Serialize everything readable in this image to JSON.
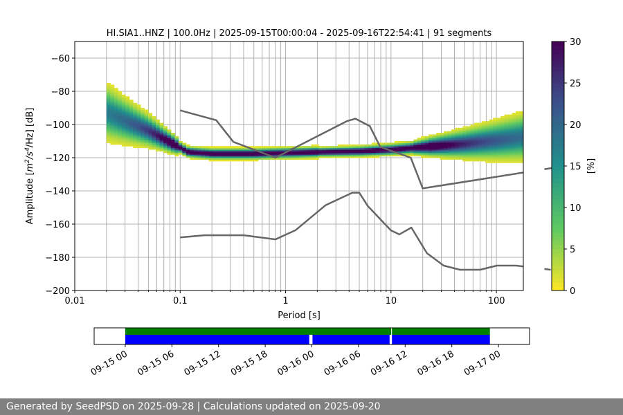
{
  "chart_data": [
    {
      "type": "heatmap",
      "title": "HI.SIA1..HNZ | 100.0Hz | 2025-09-15T00:00:04 - 2025-09-16T22:54:41 | 91 segments",
      "xlabel": "Period [s]",
      "ylabel": "Amplitude [$m^2/s^4/Hz$] [dB]",
      "ylabel_parts": {
        "pre": "Amplitude [",
        "m": "m",
        "exp1": "2",
        "mid": "/s",
        "exp2": "4",
        "post": "/Hz] [dB]"
      },
      "xscale": "log",
      "xlim": [
        0.01,
        180
      ],
      "ylim": [
        -200,
        -50
      ],
      "x_ticks": [
        0.01,
        0.1,
        1,
        10,
        100
      ],
      "x_tick_labels": [
        "0.01",
        "0.1",
        "1",
        "10",
        "100"
      ],
      "y_ticks": [
        -200,
        -180,
        -160,
        -140,
        -120,
        -100,
        -80,
        -60
      ],
      "y_tick_labels": [
        "−200",
        "−180",
        "−160",
        "−140",
        "−120",
        "−100",
        "−80",
        "−60"
      ],
      "grid": true,
      "colormap": "viridis_r",
      "colorbar": {
        "label": "[%]",
        "range": [
          0,
          30
        ],
        "ticks": [
          0,
          5,
          10,
          15,
          20,
          25,
          30
        ],
        "tick_labels": [
          "0",
          "5",
          "10",
          "15",
          "20",
          "25",
          "30"
        ]
      },
      "psd_mode": [
        [
          0.02,
          -93
        ],
        [
          0.03,
          -98
        ],
        [
          0.05,
          -104
        ],
        [
          0.08,
          -111
        ],
        [
          0.12,
          -117
        ],
        [
          0.2,
          -118
        ],
        [
          0.5,
          -118
        ],
        [
          1,
          -117.5
        ],
        [
          2,
          -117
        ],
        [
          5,
          -116.5
        ],
        [
          10,
          -115.5
        ],
        [
          20,
          -114
        ],
        [
          50,
          -112
        ],
        [
          100,
          -110
        ],
        [
          180,
          -108
        ]
      ],
      "noise_models": [
        {
          "name": "NHNM",
          "points": [
            [
              0.1,
              -91.5
            ],
            [
              0.22,
              -97.4
            ],
            [
              0.32,
              -110.5
            ],
            [
              0.8,
              -120
            ],
            [
              3.8,
              -98
            ],
            [
              4.6,
              -96.5
            ],
            [
              6.3,
              -101
            ],
            [
              7.9,
              -113.5
            ],
            [
              15.4,
              -120
            ],
            [
              20,
              -138.5
            ],
            [
              354.8,
              -126
            ]
          ]
        },
        {
          "name": "NLNM",
          "points": [
            [
              0.1,
              -168
            ],
            [
              0.17,
              -166.7
            ],
            [
              0.4,
              -166.7
            ],
            [
              0.8,
              -169.2
            ],
            [
              1.24,
              -163.7
            ],
            [
              2.4,
              -148.6
            ],
            [
              4.3,
              -141.1
            ],
            [
              5,
              -141.1
            ],
            [
              6,
              -149
            ],
            [
              10,
              -163.8
            ],
            [
              12,
              -166.2
            ],
            [
              15.6,
              -162.1
            ],
            [
              21.9,
              -177.5
            ],
            [
              31.6,
              -185
            ],
            [
              45,
              -187.5
            ],
            [
              70,
              -187.5
            ],
            [
              101,
              -185
            ],
            [
              154,
              -185
            ],
            [
              328,
              -187.5
            ]
          ]
        }
      ]
    },
    {
      "type": "timeline",
      "x_range": [
        "09-14 20:00",
        "09-17 04:00"
      ],
      "x_ticks": [
        "09-15 00",
        "09-15 06",
        "09-15 12",
        "09-15 18",
        "09-16 00",
        "09-16 06",
        "09-16 12",
        "09-16 18",
        "09-17 00"
      ],
      "tracks": [
        {
          "name": "data",
          "color": "#008000",
          "segments": [
            [
              "09-15 00:00",
              "09-16 10:12"
            ],
            [
              "09-16 10:18",
              "09-16 22:54"
            ]
          ]
        },
        {
          "name": "used",
          "color": "#0000ff",
          "segments": [
            [
              "09-15 00:00",
              "09-15 23:40"
            ],
            [
              "09-16 00:05",
              "09-16 10:00"
            ],
            [
              "09-16 10:18",
              "09-16 22:54"
            ]
          ]
        }
      ]
    }
  ],
  "footer": {
    "text": "Generated by SeedPSD on 2025-09-28 | Calculations updated on 2025-09-20"
  }
}
